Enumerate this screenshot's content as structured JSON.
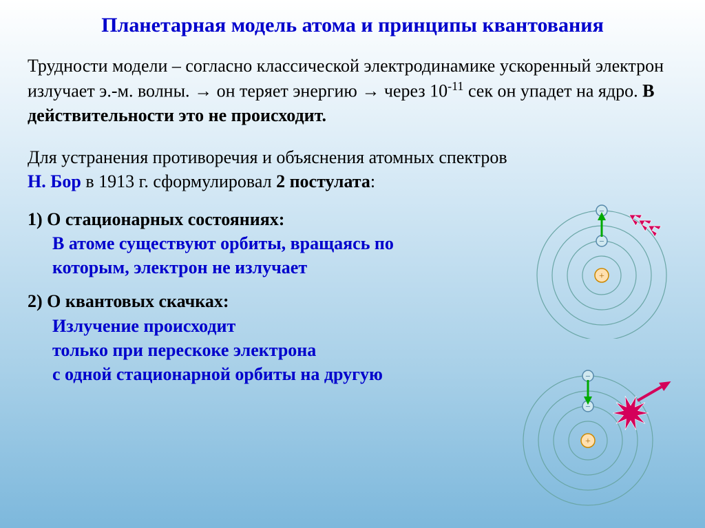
{
  "title": "Планетарная модель атома и принципы квантования",
  "para1_a": "Трудности модели – согласно классической электродинамике ускоренный электрон излучает э.-м. волны. ",
  "para1_arrow": "→",
  "para1_b": " он теряет энергию ",
  "para1_c": " через 10",
  "para1_exp": "-11",
  "para1_d": " сек он упадет на ядро. ",
  "para1_bold": "В действительности это не происходит.",
  "para2_a": "Для устранения противоречия и объяснения атомных спектров",
  "para2_bohr": "Н. Бор",
  "para2_mid": " в 1913 г. сформулировал ",
  "para2_post": "2 постулата",
  "para2_colon": ":",
  "post1_title": "1) О стационарных состояниях:",
  "post1_body": "В атоме существуют орбиты, вращаясь по которым, электрон не излучает",
  "post2_title": "2) О квантовых скачках:",
  "post2_body": "Излучение происходит\nтолько при перескоке электрона\nс одной стационарной орбиты на другую",
  "diagram": {
    "orbit_color": "#6aa6a6",
    "orbit_radii": [
      28,
      50,
      72,
      94
    ],
    "nucleus_fill": "#ffe0b0",
    "nucleus_stroke": "#cc8800",
    "electron_fill": "#d0e8f0",
    "electron_stroke": "#5588aa",
    "arrow_in_color": "#00aa00",
    "arrow_out_color": "#d4005a",
    "star_color": "#d4005a",
    "bg": "transparent",
    "size": 210
  }
}
